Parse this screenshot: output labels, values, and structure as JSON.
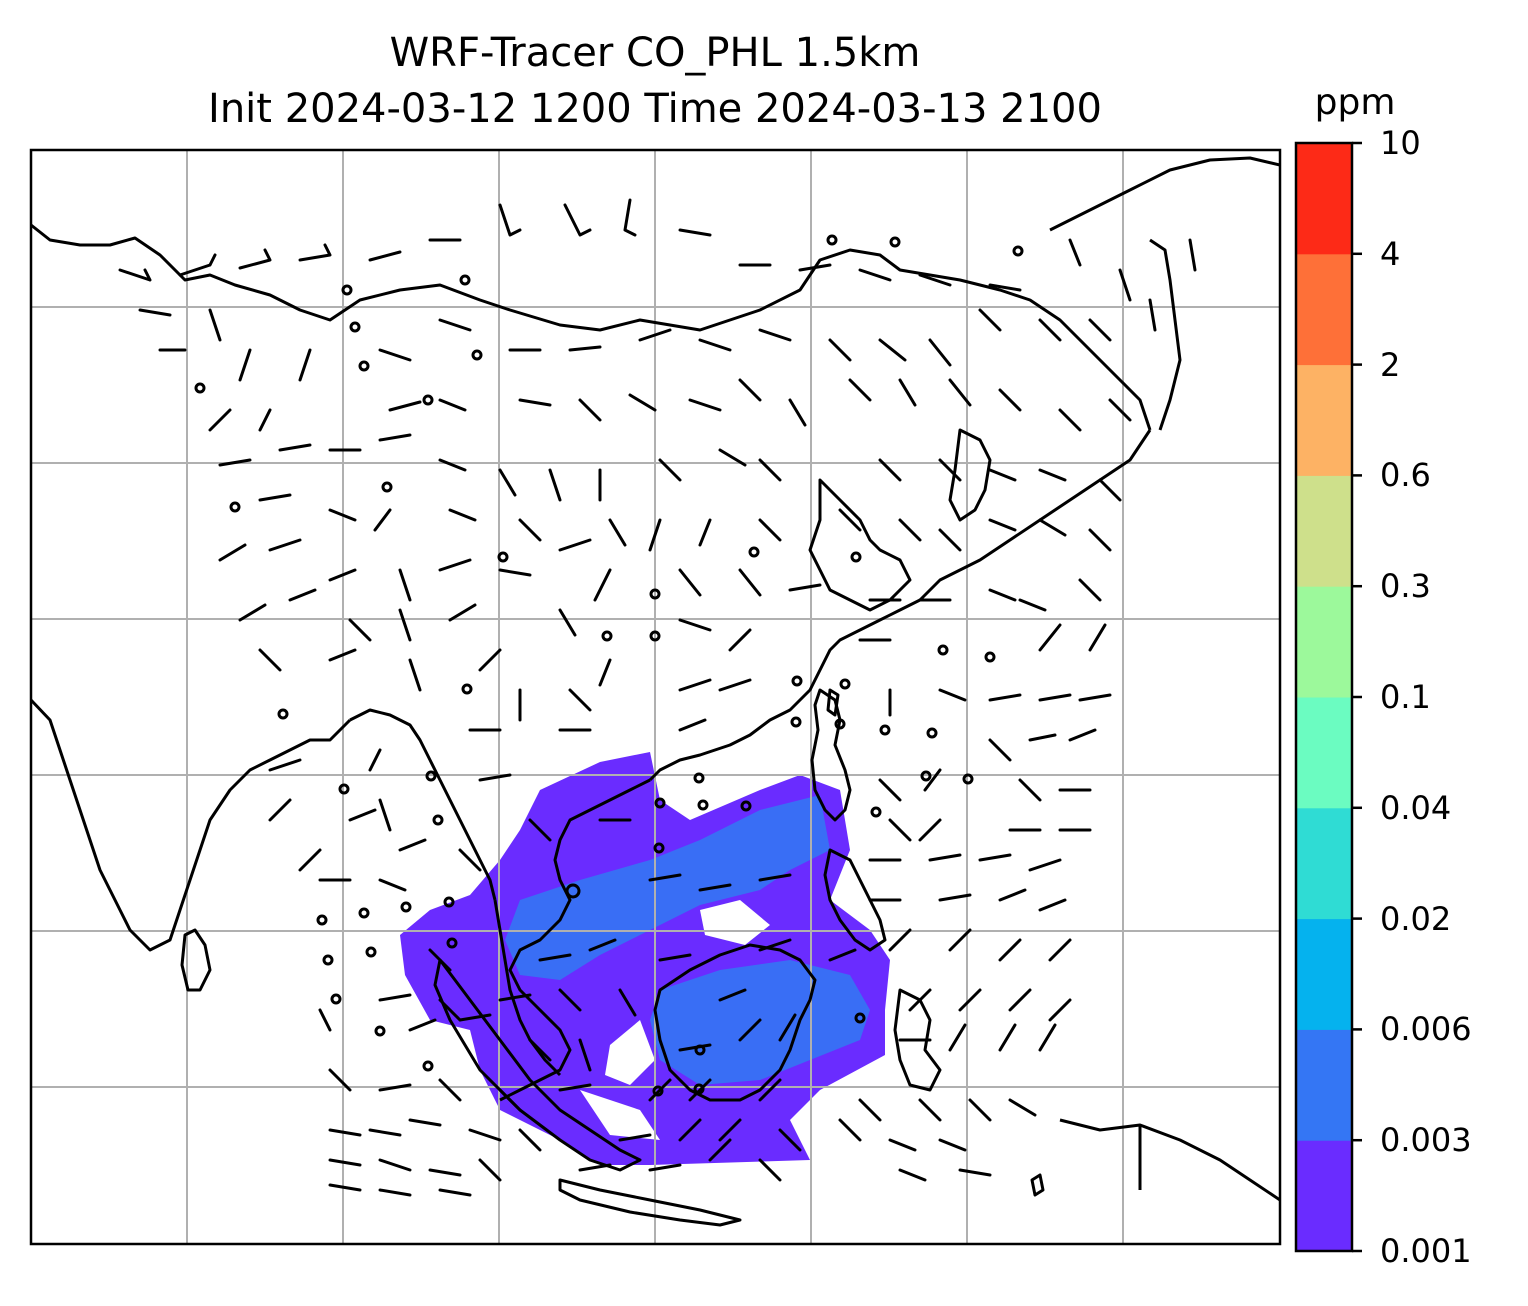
{
  "title": {
    "line1": "WRF-Tracer CO_PHL 1.5km",
    "line2": "Init 2024-03-12 1200 Time 2024-03-13 2100"
  },
  "colorbar": {
    "unit": "ppm",
    "levels": [
      "0.001",
      "0.003",
      "0.006",
      "0.02",
      "0.04",
      "0.1",
      "0.3",
      "0.6",
      "2",
      "4",
      "10"
    ],
    "colors": [
      "#6a2cff",
      "#3476f4",
      "#05b2ee",
      "#2fdcd4",
      "#6bfcc1",
      "#9cf99b",
      "#cee08b",
      "#fdb264",
      "#fe7038",
      "#fd2a17"
    ]
  },
  "map": {
    "field": "CO tracer concentration (ppm)",
    "plume_color": "#6a2cff",
    "plume_inner_color": "#3476f4",
    "gridline_color": "#b0b0b0",
    "coastline_color": "#000000",
    "overlays": [
      "wind barbs",
      "calm circles",
      "coastlines",
      "lat/lon gridlines"
    ]
  }
}
